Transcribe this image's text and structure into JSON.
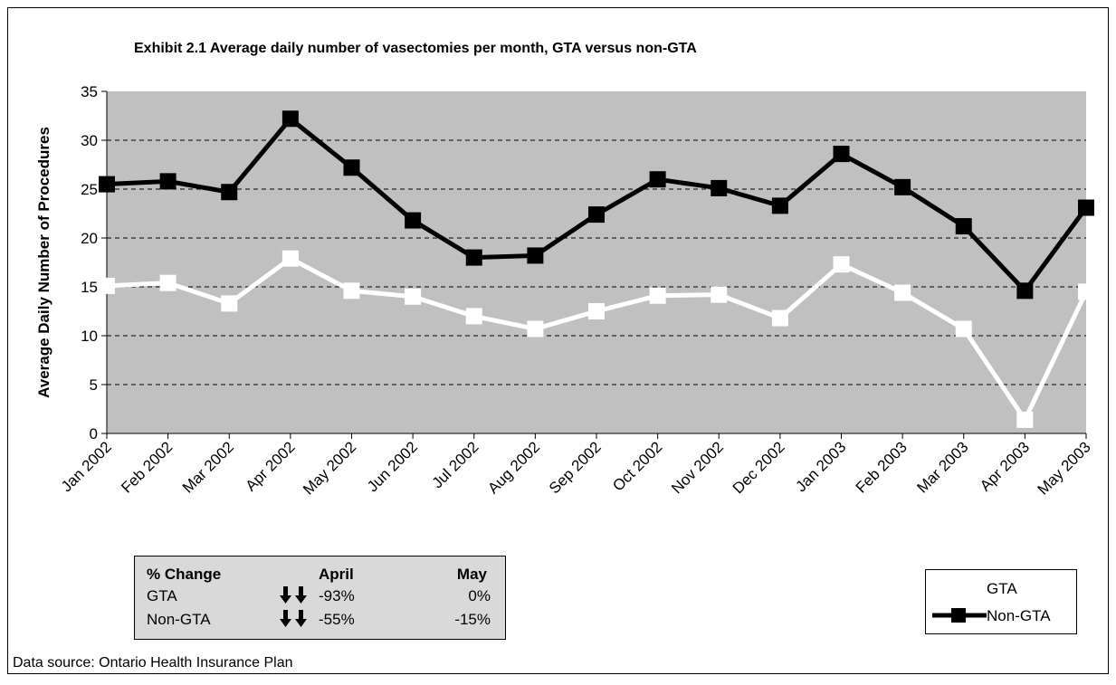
{
  "chart_data": {
    "type": "line",
    "title": "Exhibit 2.1 Average daily number of vasectomies per month, GTA versus non-GTA",
    "y_label": "Average Daily Number of Procedures",
    "categories": [
      "Jan 2002",
      "Feb 2002",
      "Mar 2002",
      "Apr 2002",
      "May 2002",
      "Jun 2002",
      "Jul 2002",
      "Aug 2002",
      "Sep 2002",
      "Oct 2002",
      "Nov 2002",
      "Dec 2002",
      "Jan 2003",
      "Feb 2003",
      "Mar 2003",
      "Apr 2003",
      "May 2003"
    ],
    "series": [
      {
        "name": "GTA",
        "color": "#ffffff",
        "values": [
          15.1,
          15.4,
          13.3,
          17.9,
          14.6,
          14.0,
          12.0,
          10.7,
          12.5,
          14.1,
          14.2,
          11.8,
          17.3,
          14.4,
          10.7,
          1.4,
          14.5
        ]
      },
      {
        "name": "Non-GTA",
        "color": "#000000",
        "values": [
          25.5,
          25.8,
          24.7,
          32.2,
          27.2,
          21.8,
          18.0,
          18.2,
          22.4,
          26.0,
          25.1,
          23.3,
          28.6,
          25.2,
          21.2,
          14.6,
          23.1
        ]
      }
    ],
    "ylim": [
      0,
      35
    ],
    "yticks": [
      0,
      5,
      10,
      15,
      20,
      25,
      30,
      35
    ],
    "grid": true,
    "legend": "right"
  },
  "change_table": {
    "header": [
      "% Change",
      "April",
      "May"
    ],
    "rows": [
      [
        "GTA",
        "-93%",
        "0%"
      ],
      [
        "Non-GTA",
        "-55%",
        "-15%"
      ]
    ]
  },
  "source": "Data source: Ontario Health Insurance Plan"
}
